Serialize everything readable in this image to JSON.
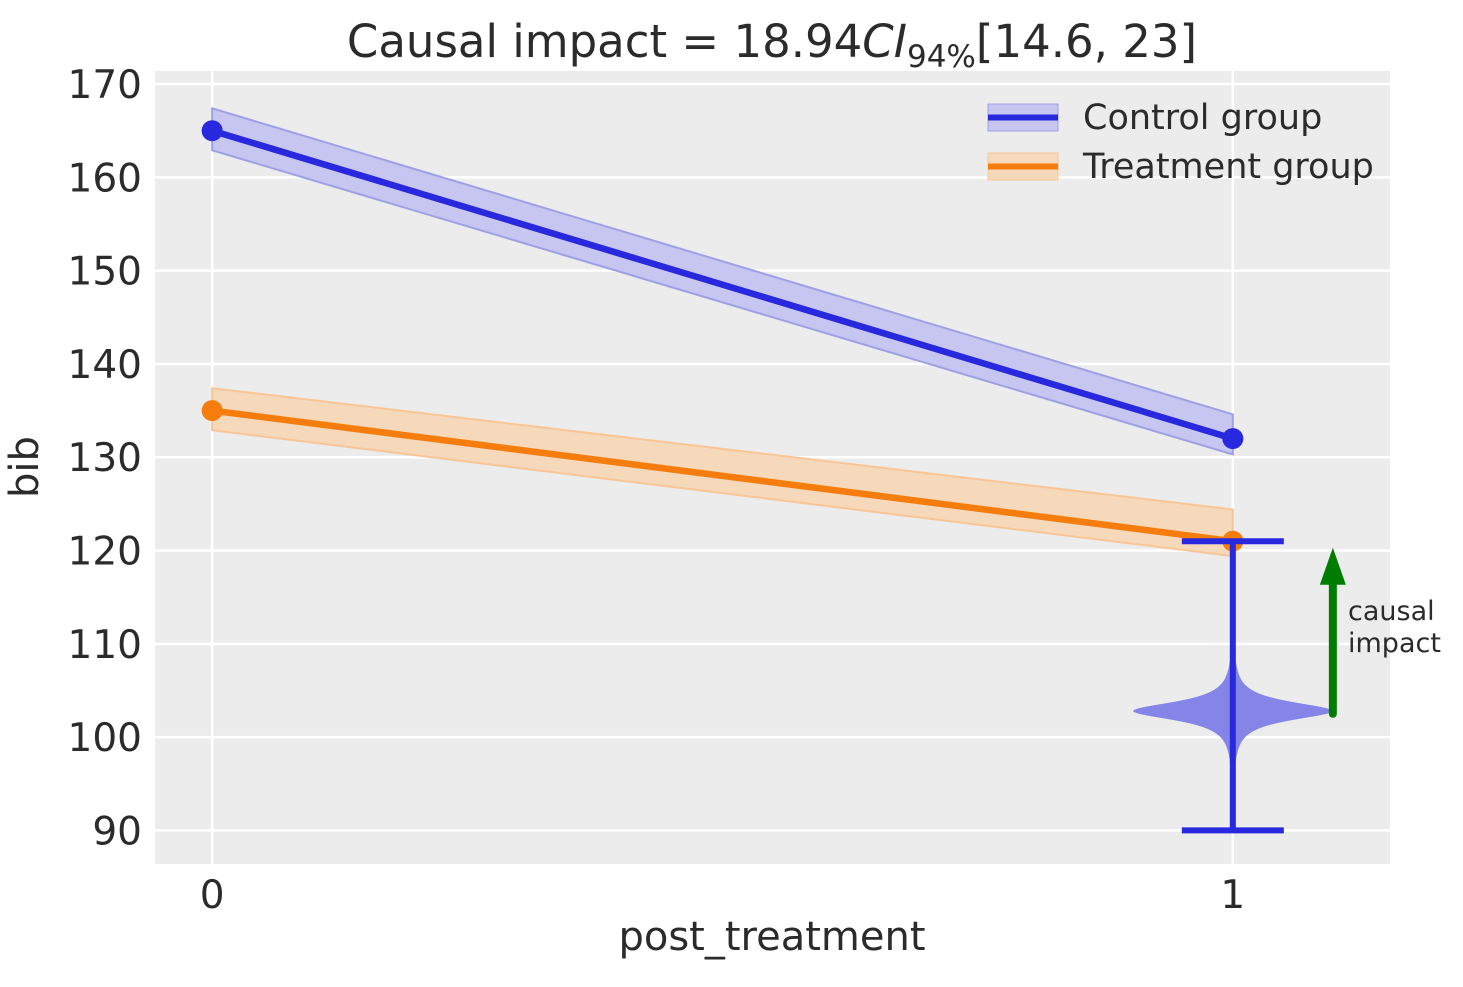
{
  "figure": {
    "background": "#ffffff",
    "plot_background": "#ececec",
    "grid_color": "#ffffff",
    "text_color": "#2b2b2b"
  },
  "chart_data": {
    "type": "line",
    "title": {
      "text": "Causal impact = 18.94CI94%[14.6, 23]",
      "prefix": "Causal impact = 18.94",
      "math": "CI",
      "subscript": "94%",
      "suffix": "[14.6, 23]"
    },
    "xlabel": "post_treatment",
    "ylabel": "bib",
    "x": [
      0,
      1
    ],
    "xticks": [
      0,
      1
    ],
    "yticks": [
      90,
      100,
      110,
      120,
      130,
      140,
      150,
      160,
      170
    ],
    "xlim": [
      -0.056,
      1.154
    ],
    "ylim": [
      86.4,
      171.4
    ],
    "grid": true,
    "legend_position": "upper right",
    "series": [
      {
        "name": "Control group",
        "color": "#2828de",
        "band_fill": "#c6c6f0",
        "band_edge": "#9f9fe6",
        "values": [
          165,
          132
        ],
        "band_low": [
          162.9,
          130.3
        ],
        "band_high": [
          167.4,
          134.6
        ]
      },
      {
        "name": "Treatment group",
        "color": "#f57d0e",
        "band_fill": "#f6d8ba",
        "band_edge": "#f8c696",
        "values": [
          135,
          121
        ],
        "band_low": [
          132.9,
          119.4
        ],
        "band_high": [
          137.4,
          124.4
        ]
      }
    ],
    "counterfactual_violin": {
      "x": 1,
      "mode": 102.8,
      "whisker_low": 90,
      "whisker_high": 121,
      "halfwidth": 0.098,
      "fill": "#8585e8",
      "line_color": "#2828de"
    },
    "impact_arrow": {
      "x": 1.098,
      "from": 102.5,
      "to": 120.3,
      "color": "#007c00",
      "label_lines": [
        "causal",
        "impact"
      ]
    }
  }
}
